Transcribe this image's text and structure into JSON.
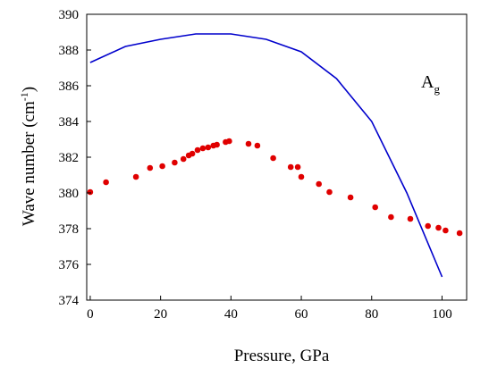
{
  "chart_data": {
    "type": "scatter",
    "xlabel": "Pressure, GPa",
    "ylabel": "Wave number  (cm",
    "ylabel_sup": "-1",
    "ylabel_close": ")",
    "annotation": {
      "text": "A",
      "subscript": "g"
    },
    "xlim": [
      -1,
      107
    ],
    "ylim": [
      374,
      390
    ],
    "xticks": [
      0,
      20,
      40,
      60,
      80,
      100
    ],
    "yticks": [
      374,
      376,
      378,
      380,
      382,
      384,
      386,
      388,
      390
    ],
    "grid": false,
    "series": [
      {
        "type": "line",
        "color": "#0000cc",
        "x": [
          0,
          10,
          20,
          30,
          40,
          50,
          60,
          70,
          80,
          90,
          100
        ],
        "y": [
          387.3,
          388.2,
          388.6,
          388.9,
          388.9,
          388.6,
          387.9,
          386.4,
          384.0,
          380.0,
          375.3
        ]
      },
      {
        "type": "scatter",
        "color": "#e00000",
        "x": [
          0,
          4.5,
          13,
          17,
          20.5,
          24,
          26.5,
          28,
          29,
          30.5,
          32,
          33.5,
          35,
          36,
          38.5,
          39.5,
          45,
          47.5,
          52,
          57,
          59,
          60,
          65,
          68,
          74,
          81,
          85.5,
          91,
          96,
          99,
          101,
          105
        ],
        "y": [
          380.05,
          380.6,
          380.9,
          381.4,
          381.5,
          381.7,
          381.9,
          382.1,
          382.2,
          382.4,
          382.5,
          382.55,
          382.65,
          382.7,
          382.85,
          382.9,
          382.75,
          382.65,
          381.95,
          381.45,
          381.45,
          380.9,
          380.5,
          380.05,
          379.75,
          379.2,
          378.65,
          378.55,
          378.15,
          378.05,
          377.9,
          377.75
        ]
      }
    ]
  }
}
